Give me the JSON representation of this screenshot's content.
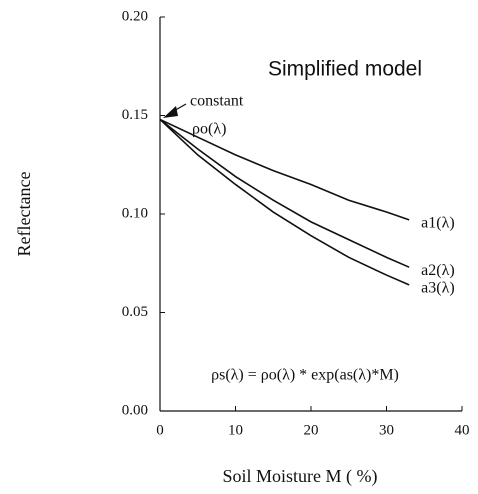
{
  "chart_data": {
    "type": "line",
    "x_label": "Soil Moisture M ( %)",
    "y_label": "Reflectance",
    "annotations": [
      "Simplified model",
      "constant",
      "ρo(λ)",
      "ρs(λ) = ρo(λ) * exp(as(λ)*M)"
    ],
    "x": [
      0,
      5,
      10,
      15,
      20,
      25,
      30,
      33
    ],
    "series": [
      {
        "name": "a1(λ)",
        "color": "#111111",
        "values": [
          0.148,
          0.139,
          0.13,
          0.122,
          0.115,
          0.107,
          0.101,
          0.097
        ]
      },
      {
        "name": "a2(λ)",
        "color": "#111111",
        "values": [
          0.148,
          0.133,
          0.119,
          0.107,
          0.096,
          0.087,
          0.078,
          0.073
        ]
      },
      {
        "name": "a3(λ)",
        "color": "#111111",
        "values": [
          0.148,
          0.13,
          0.115,
          0.101,
          0.089,
          0.078,
          0.069,
          0.064
        ]
      }
    ],
    "xlim": [
      0,
      40
    ],
    "xticks": [
      0,
      10,
      20,
      30,
      40
    ],
    "ylim": [
      0,
      0.2
    ],
    "yticks": [
      {
        "value": 0,
        "label": "0.00"
      },
      {
        "value": 0.05,
        "label": "0.05"
      },
      {
        "value": 0.1,
        "label": "0.10"
      },
      {
        "value": 0.15,
        "label": "0.15"
      },
      {
        "value": 0.2,
        "label": "0.20"
      }
    ]
  }
}
